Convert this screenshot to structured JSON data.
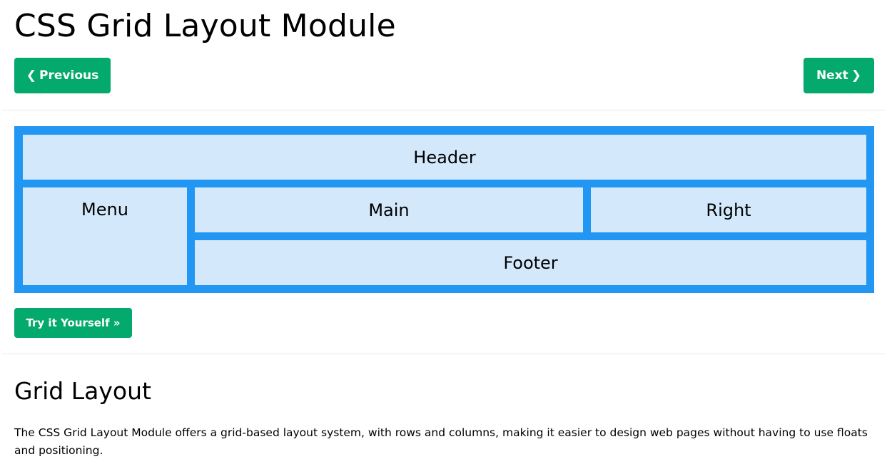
{
  "page": {
    "title": "CSS Grid Layout Module"
  },
  "nav": {
    "previous_label": "Previous",
    "previous_icon": "chevron-left-icon",
    "next_label": "Next",
    "next_icon": "chevron-right-icon"
  },
  "grid_demo": {
    "items": {
      "header": "Header",
      "menu": "Menu",
      "main": "Main",
      "right": "Right",
      "footer": "Footer"
    }
  },
  "try_button": {
    "label": "Try it Yourself »"
  },
  "section": {
    "title": "Grid Layout",
    "text": "The CSS Grid Layout Module offers a grid-based layout system, with rows and columns, making it easier to design web pages without having to use floats and positioning."
  },
  "colors": {
    "button_green": "#04aa6d",
    "grid_border_blue": "#2196f3",
    "grid_item_bg": "#d3e9fb",
    "divider": "#e7e9eb"
  }
}
